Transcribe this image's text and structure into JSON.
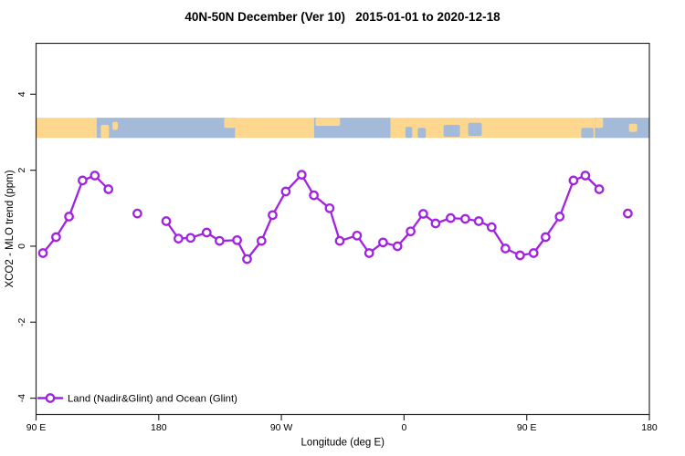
{
  "title": "40N-50N December (Ver 10)   2015-01-01 to 2020-12-18",
  "chart_data": {
    "type": "line",
    "title": "40N-50N December (Ver 10)   2015-01-01 to 2020-12-18",
    "xlabel": "Longitude (deg E)",
    "ylabel": "XCO2 - MLO trend (ppm)",
    "xlim": [
      90,
      540
    ],
    "ylim": [
      -4.43,
      5.34
    ],
    "grid": false,
    "x_ticks": [
      {
        "pos": 90,
        "label": "90 E"
      },
      {
        "pos": 180,
        "label": "180"
      },
      {
        "pos": 270,
        "label": "90 W"
      },
      {
        "pos": 360,
        "label": "0"
      },
      {
        "pos": 450,
        "label": "90 E"
      },
      {
        "pos": 540,
        "label": "180"
      }
    ],
    "y_ticks": [
      {
        "pos": 4,
        "label": "4"
      },
      {
        "pos": 2,
        "label": "2"
      },
      {
        "pos": 0,
        "label": "0"
      },
      {
        "pos": -2,
        "label": "-2"
      },
      {
        "pos": -4,
        "label": "-4"
      }
    ],
    "legend": {
      "label": "Land (Nadir&Glint) and Ocean (Glint)",
      "position": "bottom-left"
    },
    "colors": {
      "series": "#A122E0",
      "marker_fill": "#ffffff",
      "land": "#FCD78D",
      "ocean": "#A4BAD9",
      "axis": "#2a2a2a",
      "text": "#000000",
      "background": "#ffffff"
    },
    "map_band": {
      "description": "world map strip of 40N-50N latitude band, land vs ocean",
      "ppm_top": 3.38,
      "ppm_bottom": 2.85,
      "base": "land",
      "ocean_ranges": [
        [
          134.5,
          236
        ],
        [
          294,
          350
        ],
        [
          500,
          540
        ]
      ],
      "sea_patches": [
        [
          361,
          366,
          0.45,
          1.0
        ],
        [
          370,
          376,
          0.5,
          1.0
        ],
        [
          389,
          401,
          0.35,
          0.95
        ],
        [
          407,
          417,
          0.25,
          0.9
        ],
        [
          490,
          499,
          0.5,
          1.0
        ]
      ],
      "land_patches": [
        [
          137.5,
          143.5,
          0.35,
          1.0
        ],
        [
          146,
          150,
          0.2,
          0.6
        ],
        [
          228,
          236,
          0.0,
          0.5
        ],
        [
          295,
          313,
          0.0,
          0.4
        ],
        [
          500,
          506,
          0.0,
          0.5
        ],
        [
          525,
          531,
          0.3,
          0.7
        ]
      ]
    },
    "series": [
      {
        "name": "Land (Nadir&Glint) and Ocean (Glint)",
        "marker": "open-circle",
        "segments": [
          {
            "points": [
              [
                95.0,
                -0.18
              ],
              [
                104.7,
                0.24
              ],
              [
                114.2,
                0.78
              ],
              [
                124.1,
                1.73
              ],
              [
                133.1,
                1.86
              ],
              [
                143.1,
                1.5
              ]
            ]
          },
          {
            "points": [
              [
                164.3,
                0.86
              ]
            ]
          },
          {
            "points": [
              [
                185.5,
                0.66
              ],
              [
                194.5,
                0.2
              ],
              [
                203.4,
                0.22
              ],
              [
                215.2,
                0.36
              ],
              [
                224.6,
                0.14
              ],
              [
                237.5,
                0.16
              ],
              [
                244.8,
                -0.34
              ],
              [
                255.4,
                0.14
              ],
              [
                263.6,
                0.82
              ],
              [
                273.2,
                1.44
              ],
              [
                284.9,
                1.88
              ],
              [
                293.8,
                1.34
              ],
              [
                305.4,
                1.0
              ],
              [
                312.8,
                0.14
              ],
              [
                325.5,
                0.28
              ],
              [
                334.4,
                -0.18
              ],
              [
                344.6,
                0.1
              ],
              [
                355.2,
                0.0
              ],
              [
                364.8,
                0.39
              ],
              [
                374.1,
                0.85
              ],
              [
                383.1,
                0.6
              ],
              [
                394.2,
                0.74
              ],
              [
                404.9,
                0.72
              ],
              [
                414.8,
                0.66
              ],
              [
                424.3,
                0.5
              ],
              [
                434.4,
                -0.06
              ],
              [
                445.1,
                -0.24
              ],
              [
                455.0,
                -0.18
              ],
              [
                463.9,
                0.24
              ],
              [
                474.2,
                0.78
              ],
              [
                484.3,
                1.73
              ],
              [
                493.0,
                1.86
              ],
              [
                503.2,
                1.5
              ]
            ]
          },
          {
            "points": [
              [
                524.2,
                0.86
              ]
            ]
          }
        ]
      }
    ]
  }
}
